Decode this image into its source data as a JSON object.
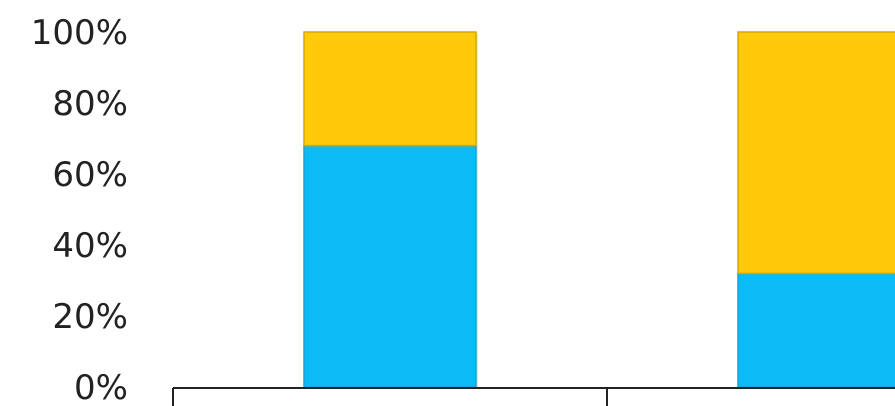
{
  "chart_data": {
    "type": "bar",
    "stacked": true,
    "percent_stacked": true,
    "title": "",
    "xlabel": "",
    "ylabel": "",
    "ylim": [
      0,
      100
    ],
    "y_ticks": [
      "0%",
      "20%",
      "40%",
      "60%",
      "80%",
      "100%"
    ],
    "grid": false,
    "categories": [
      "",
      ""
    ],
    "series": [
      {
        "color": "#0BBBF6",
        "values": [
          68,
          32
        ]
      },
      {
        "color": "#FECA0A",
        "values": [
          32,
          68
        ]
      }
    ]
  }
}
